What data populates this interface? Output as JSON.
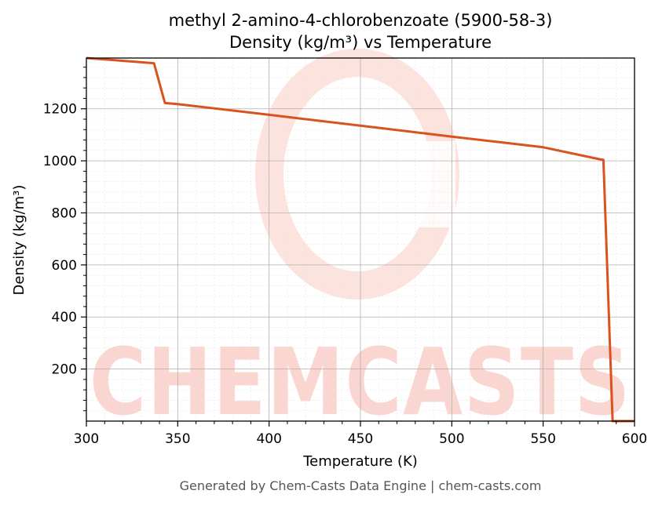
{
  "chart_data": {
    "type": "line",
    "title": "methyl 2-amino-4-chlorobenzoate (5900-58-3)",
    "subtitle": "Density (kg/m³) vs Temperature",
    "xlabel": "Temperature (K)",
    "ylabel": "Density (kg/m³)",
    "xlim": [
      300,
      600
    ],
    "ylim": [
      0,
      1395
    ],
    "xticks": [
      300,
      350,
      400,
      450,
      500,
      550,
      600
    ],
    "yticks": [
      200,
      400,
      600,
      800,
      1000,
      1200
    ],
    "grid": true,
    "minor_grid": true,
    "series": [
      {
        "color": "#d9531e",
        "x": [
          300,
          337,
          343,
          350,
          400,
          450,
          500,
          550,
          581,
          583,
          588,
          600
        ],
        "y": [
          1395,
          1375,
          1222,
          1218,
          1177,
          1135,
          1093,
          1052,
          1006,
          1004,
          0,
          0
        ]
      }
    ]
  },
  "watermark": {
    "text": "CHEMCASTS"
  },
  "footer": "Generated by Chem-Casts Data Engine | chem-casts.com"
}
